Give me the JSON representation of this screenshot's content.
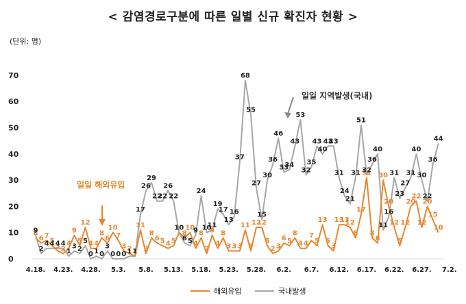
{
  "chart_data": {
    "type": "line",
    "title": "< 감염경로구분에 따른 일별 신규 확진자 현황 >",
    "unit_label": "(단위: 명)",
    "ylim": [
      0,
      70
    ],
    "y_ticks": [
      0,
      10,
      20,
      30,
      40,
      50,
      60,
      70
    ],
    "grid": false,
    "legend_position": "bottom-center",
    "x_tick_labels": [
      "4.18.",
      "4.23.",
      "4.28.",
      "5.3.",
      "5.8.",
      "5.13.",
      "5.18.",
      "5.23.",
      "5.28.",
      "6.2.",
      "6.7.",
      "6.12.",
      "6.17.",
      "6.22.",
      "6.27.",
      "7.2."
    ],
    "x_tick_every": 5,
    "series": [
      {
        "name": "해외유입",
        "color": "#E8862C",
        "values": [
          8,
          6,
          7,
          5,
          3,
          2,
          4,
          9,
          5,
          12,
          4,
          4,
          8,
          6,
          10,
          7,
          3,
          2,
          1,
          11,
          2,
          8,
          6,
          5,
          4,
          5,
          10,
          8,
          10,
          4,
          8,
          2,
          9,
          4,
          8,
          3,
          3,
          3,
          11,
          3,
          12,
          12,
          5,
          2,
          3,
          6,
          5,
          8,
          4,
          4,
          7,
          5,
          13,
          5,
          3,
          13,
          13,
          12,
          8,
          17,
          31,
          8,
          6,
          30,
          20,
          12,
          5,
          12,
          20,
          22,
          12,
          20,
          15,
          10
        ]
      },
      {
        "name": "국내발생",
        "color": "#A6A6A6",
        "values": [
          9,
          2,
          4,
          4,
          4,
          4,
          1,
          3,
          2,
          5,
          0,
          1,
          0,
          3,
          0,
          0,
          0,
          1,
          1,
          17,
          26,
          29,
          22,
          22,
          26,
          22,
          10,
          6,
          5,
          9,
          24,
          10,
          11,
          19,
          17,
          13,
          16,
          37,
          68,
          55,
          27,
          15,
          30,
          36,
          46,
          33,
          34,
          43,
          53,
          32,
          35,
          43,
          40,
          43,
          43,
          31,
          24,
          21,
          31,
          51,
          32,
          36,
          40,
          11,
          16,
          31,
          23,
          27,
          31,
          40,
          30,
          22,
          36,
          44
        ]
      }
    ],
    "annotations": [
      "일일 지역발생(국내)",
      "일일 해외유입"
    ]
  }
}
